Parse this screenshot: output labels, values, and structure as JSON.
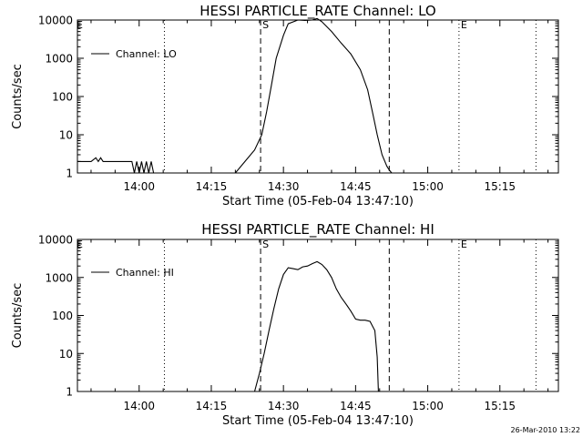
{
  "footer": {
    "timestamp": "26-Mar-2010 13:22"
  },
  "chart_data": [
    {
      "type": "line",
      "title": "HESSI PARTICLE_RATE Channel: LO",
      "xlabel": "Start Time (05-Feb-04 13:47:10)",
      "ylabel": "Counts/sec",
      "y_scale": "log",
      "ylim": [
        1,
        10000
      ],
      "xlim": [
        "13:47:10",
        "15:27:10"
      ],
      "x_ticks": [
        "14:00",
        "14:15",
        "14:30",
        "14:45",
        "15:00",
        "15:15"
      ],
      "y_ticks": [
        "1",
        "10",
        "100",
        "1000",
        "10000"
      ],
      "legend": "top-left",
      "grid": false,
      "series": [
        {
          "name": "Channel: LO",
          "x": [
            "13:47:10",
            "13:50:00",
            "13:51:00",
            "13:51:30",
            "13:52:00",
            "13:52:30",
            "13:53:00",
            "13:58:30",
            "13:59:00",
            "13:59:30",
            "14:00:00",
            "14:00:30",
            "14:01:00",
            "14:01:30",
            "14:02:00",
            "14:02:30",
            "14:03:00",
            "14:20:00",
            "14:22:00",
            "14:24:00",
            "14:25:30",
            "14:26:30",
            "14:27:30",
            "14:28:30",
            "14:30:00",
            "14:31:00",
            "14:33:00",
            "14:34:30",
            "14:36:00",
            "14:37:00",
            "14:38:00",
            "14:40:00",
            "14:42:00",
            "14:44:00",
            "14:46:00",
            "14:47:30",
            "14:48:30",
            "14:49:30",
            "14:50:30",
            "14:51:30",
            "14:52:00",
            "14:52:30"
          ],
          "y": [
            2,
            2,
            2.5,
            2,
            2.5,
            2,
            2,
            2,
            1,
            2,
            1,
            2,
            1,
            2,
            1,
            2,
            1,
            1,
            2,
            4,
            10,
            40,
            200,
            1000,
            4000,
            8000,
            10000,
            9800,
            10000,
            11000,
            9000,
            5000,
            2500,
            1300,
            500,
            150,
            40,
            10,
            3,
            1.5,
            1.2,
            1
          ]
        }
      ],
      "markers": [
        {
          "label": "S",
          "x": "14:25:15",
          "style": "dashed"
        },
        {
          "label": "",
          "x": "14:52:00",
          "style": "dashed"
        },
        {
          "label": "E",
          "x": "15:06:30",
          "style": "dotted"
        },
        {
          "label": "",
          "x": "14:05:15",
          "style": "dotted"
        },
        {
          "label": "",
          "x": "15:22:30",
          "style": "dotted"
        }
      ]
    },
    {
      "type": "line",
      "title": "HESSI PARTICLE_RATE Channel: HI",
      "xlabel": "Start Time (05-Feb-04 13:47:10)",
      "ylabel": "Counts/sec",
      "y_scale": "log",
      "ylim": [
        1,
        10000
      ],
      "xlim": [
        "13:47:10",
        "15:27:10"
      ],
      "x_ticks": [
        "14:00",
        "14:15",
        "14:30",
        "14:45",
        "15:00",
        "15:15"
      ],
      "y_ticks": [
        "1",
        "10",
        "100",
        "1000",
        "10000"
      ],
      "legend": "top-left",
      "grid": false,
      "series": [
        {
          "name": "Channel: HI",
          "x": [
            "14:24:00",
            "14:25:00",
            "14:26:00",
            "14:27:00",
            "14:28:00",
            "14:29:00",
            "14:30:00",
            "14:31:00",
            "14:32:00",
            "14:33:00",
            "14:34:00",
            "14:35:00",
            "14:36:00",
            "14:37:00",
            "14:38:00",
            "14:39:00",
            "14:40:00",
            "14:41:00",
            "14:42:00",
            "14:43:00",
            "14:44:00",
            "14:45:00",
            "14:46:00",
            "14:47:00",
            "14:48:00",
            "14:49:00",
            "14:49:30",
            "14:49:45"
          ],
          "y": [
            1,
            3,
            10,
            40,
            150,
            500,
            1200,
            1800,
            1700,
            1600,
            1900,
            2000,
            2300,
            2600,
            2200,
            1600,
            1000,
            500,
            300,
            200,
            130,
            80,
            75,
            75,
            70,
            40,
            8,
            1
          ]
        }
      ],
      "markers": [
        {
          "label": "S",
          "x": "14:25:15",
          "style": "dashed"
        },
        {
          "label": "",
          "x": "14:52:00",
          "style": "dashed"
        },
        {
          "label": "E",
          "x": "15:06:30",
          "style": "dotted"
        },
        {
          "label": "",
          "x": "14:05:15",
          "style": "dotted"
        },
        {
          "label": "",
          "x": "15:22:30",
          "style": "dotted"
        }
      ]
    }
  ]
}
